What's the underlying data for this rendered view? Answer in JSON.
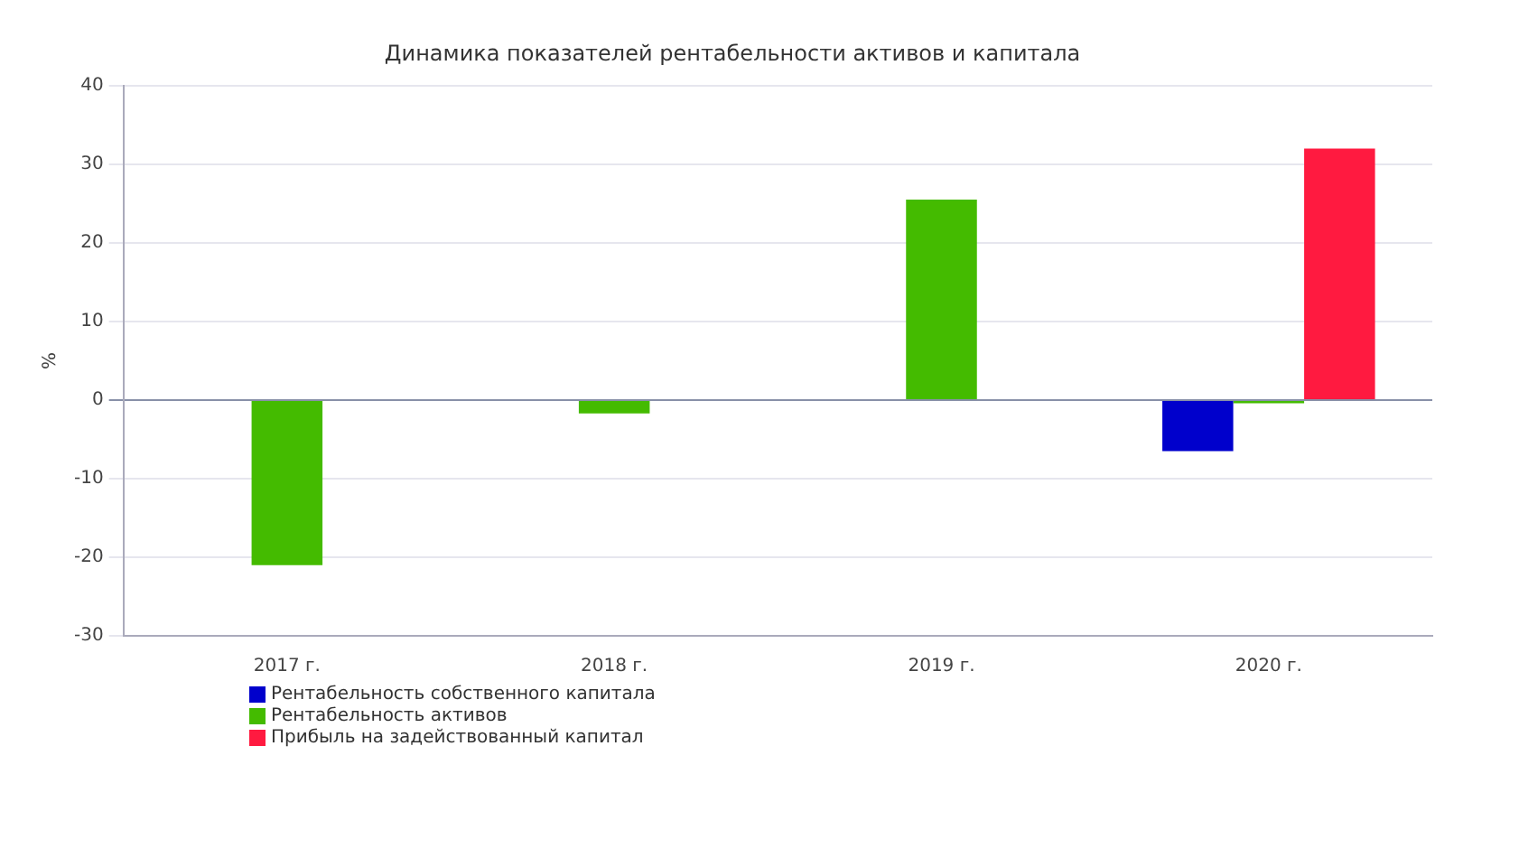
{
  "chart_data": {
    "type": "bar",
    "title": "Динамика показателей рентабельности активов и капитала",
    "ylabel": "%",
    "categories": [
      "2017 г.",
      "2018 г.",
      "2019 г.",
      "2020 г."
    ],
    "series": [
      {
        "name": "Рентабельность собственного капитала",
        "color": "#0000cc",
        "values": [
          0,
          0,
          0,
          -6.5
        ]
      },
      {
        "name": "Рентабельность активов",
        "color": "#44bb00",
        "values": [
          -21,
          -1.7,
          25.5,
          -0.4
        ]
      },
      {
        "name": "Прибыль на задействованный капитал",
        "color": "#ff1a40",
        "values": [
          0,
          0,
          0,
          32
        ]
      }
    ],
    "ylim": [
      -30,
      40
    ],
    "yticks": [
      -30,
      -20,
      -10,
      0,
      10,
      20,
      30,
      40
    ],
    "grid": "y",
    "legend": "bottom left"
  }
}
